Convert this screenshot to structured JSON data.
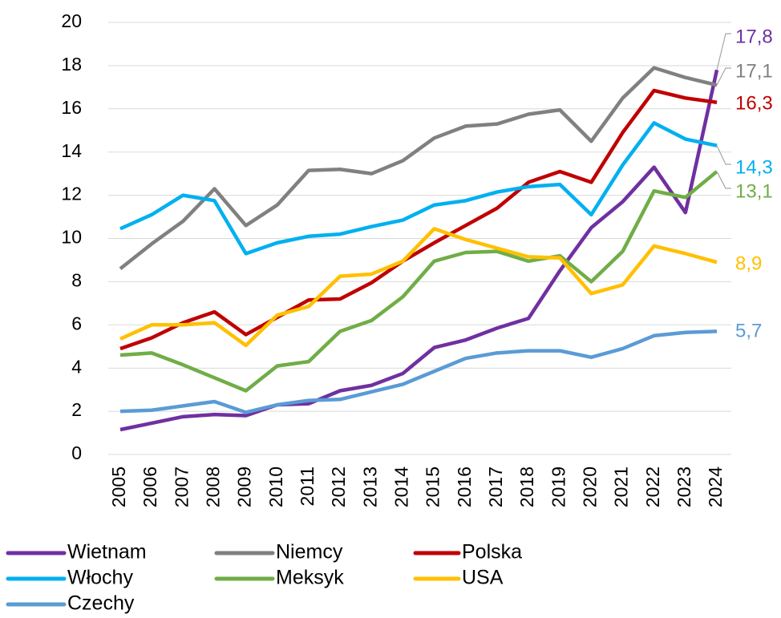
{
  "chart_data": {
    "type": "line",
    "categories": [
      "2005",
      "2006",
      "2007",
      "2008",
      "2009",
      "2010",
      "2011",
      "2012",
      "2013",
      "2014",
      "2015",
      "2016",
      "2017",
      "2018",
      "2019",
      "2020",
      "2021",
      "2022",
      "2023",
      "2024"
    ],
    "ylim": [
      0,
      20
    ],
    "yticks": [
      0,
      2,
      4,
      6,
      8,
      10,
      12,
      14,
      16,
      18,
      20
    ],
    "grid": true,
    "legend": "bottom",
    "series": [
      {
        "name": "Wietnam",
        "color": "#7030a0",
        "values": [
          1.15,
          1.45,
          1.75,
          1.85,
          1.8,
          2.3,
          2.35,
          2.95,
          3.2,
          3.75,
          4.95,
          5.3,
          5.85,
          6.3,
          8.5,
          10.5,
          11.7,
          13.3,
          11.2,
          17.8
        ],
        "value_labels": [
          null,
          null,
          null,
          null,
          null,
          null,
          null,
          null,
          null,
          null,
          null,
          null,
          null,
          null,
          null,
          null,
          null,
          null,
          null,
          "17,8"
        ]
      },
      {
        "name": "Niemcy",
        "color": "#808080",
        "values": [
          8.6,
          9.75,
          10.8,
          12.3,
          10.6,
          11.55,
          13.15,
          13.2,
          13.0,
          13.6,
          14.65,
          15.2,
          15.3,
          15.75,
          15.95,
          14.5,
          16.5,
          17.9,
          17.45,
          17.1
        ],
        "value_labels": [
          null,
          null,
          null,
          null,
          null,
          null,
          null,
          null,
          null,
          null,
          null,
          null,
          null,
          null,
          null,
          null,
          null,
          null,
          null,
          "17,1"
        ]
      },
      {
        "name": "Polska",
        "color": "#c00000",
        "values": [
          4.9,
          5.4,
          6.1,
          6.6,
          5.55,
          6.35,
          7.15,
          7.2,
          7.95,
          8.95,
          9.8,
          10.6,
          11.4,
          12.6,
          13.1,
          12.6,
          14.9,
          16.85,
          16.5,
          16.3
        ],
        "value_labels": [
          null,
          null,
          null,
          null,
          null,
          null,
          null,
          null,
          null,
          null,
          null,
          null,
          null,
          null,
          null,
          null,
          null,
          null,
          null,
          "16,3"
        ]
      },
      {
        "name": "Włochy",
        "color": "#00b0f0",
        "values": [
          10.45,
          11.1,
          12.0,
          11.75,
          9.3,
          9.8,
          10.1,
          10.2,
          10.55,
          10.85,
          11.55,
          11.75,
          12.15,
          12.4,
          12.5,
          11.1,
          13.4,
          15.35,
          14.6,
          14.3
        ],
        "value_labels": [
          null,
          null,
          null,
          null,
          null,
          null,
          null,
          null,
          null,
          null,
          null,
          null,
          null,
          null,
          null,
          null,
          null,
          null,
          null,
          "14,3"
        ]
      },
      {
        "name": "Meksyk",
        "color": "#70ad47",
        "values": [
          4.6,
          4.7,
          4.15,
          3.55,
          2.95,
          4.1,
          4.3,
          5.7,
          6.2,
          7.3,
          8.95,
          9.35,
          9.4,
          8.95,
          9.2,
          8.0,
          9.4,
          12.2,
          11.9,
          13.1
        ],
        "value_labels": [
          null,
          null,
          null,
          null,
          null,
          null,
          null,
          null,
          null,
          null,
          null,
          null,
          null,
          null,
          null,
          null,
          null,
          null,
          null,
          "13,1"
        ]
      },
      {
        "name": "USA",
        "color": "#ffc000",
        "values": [
          5.35,
          6.0,
          6.0,
          6.1,
          5.05,
          6.45,
          6.85,
          8.25,
          8.35,
          8.95,
          10.45,
          9.95,
          9.55,
          9.15,
          9.1,
          7.45,
          7.85,
          9.65,
          9.3,
          8.9
        ],
        "value_labels": [
          null,
          null,
          null,
          null,
          null,
          null,
          null,
          null,
          null,
          null,
          null,
          null,
          null,
          null,
          null,
          null,
          null,
          null,
          null,
          "8,9"
        ]
      },
      {
        "name": "Czechy",
        "color": "#5b9bd5",
        "values": [
          2.0,
          2.05,
          2.25,
          2.45,
          1.95,
          2.3,
          2.5,
          2.55,
          2.9,
          3.25,
          3.85,
          4.45,
          4.7,
          4.8,
          4.8,
          4.5,
          4.9,
          5.5,
          5.65,
          5.7
        ],
        "value_labels": [
          null,
          null,
          null,
          null,
          null,
          null,
          null,
          null,
          null,
          null,
          null,
          null,
          null,
          null,
          null,
          null,
          null,
          null,
          null,
          "5,7"
        ]
      }
    ]
  }
}
